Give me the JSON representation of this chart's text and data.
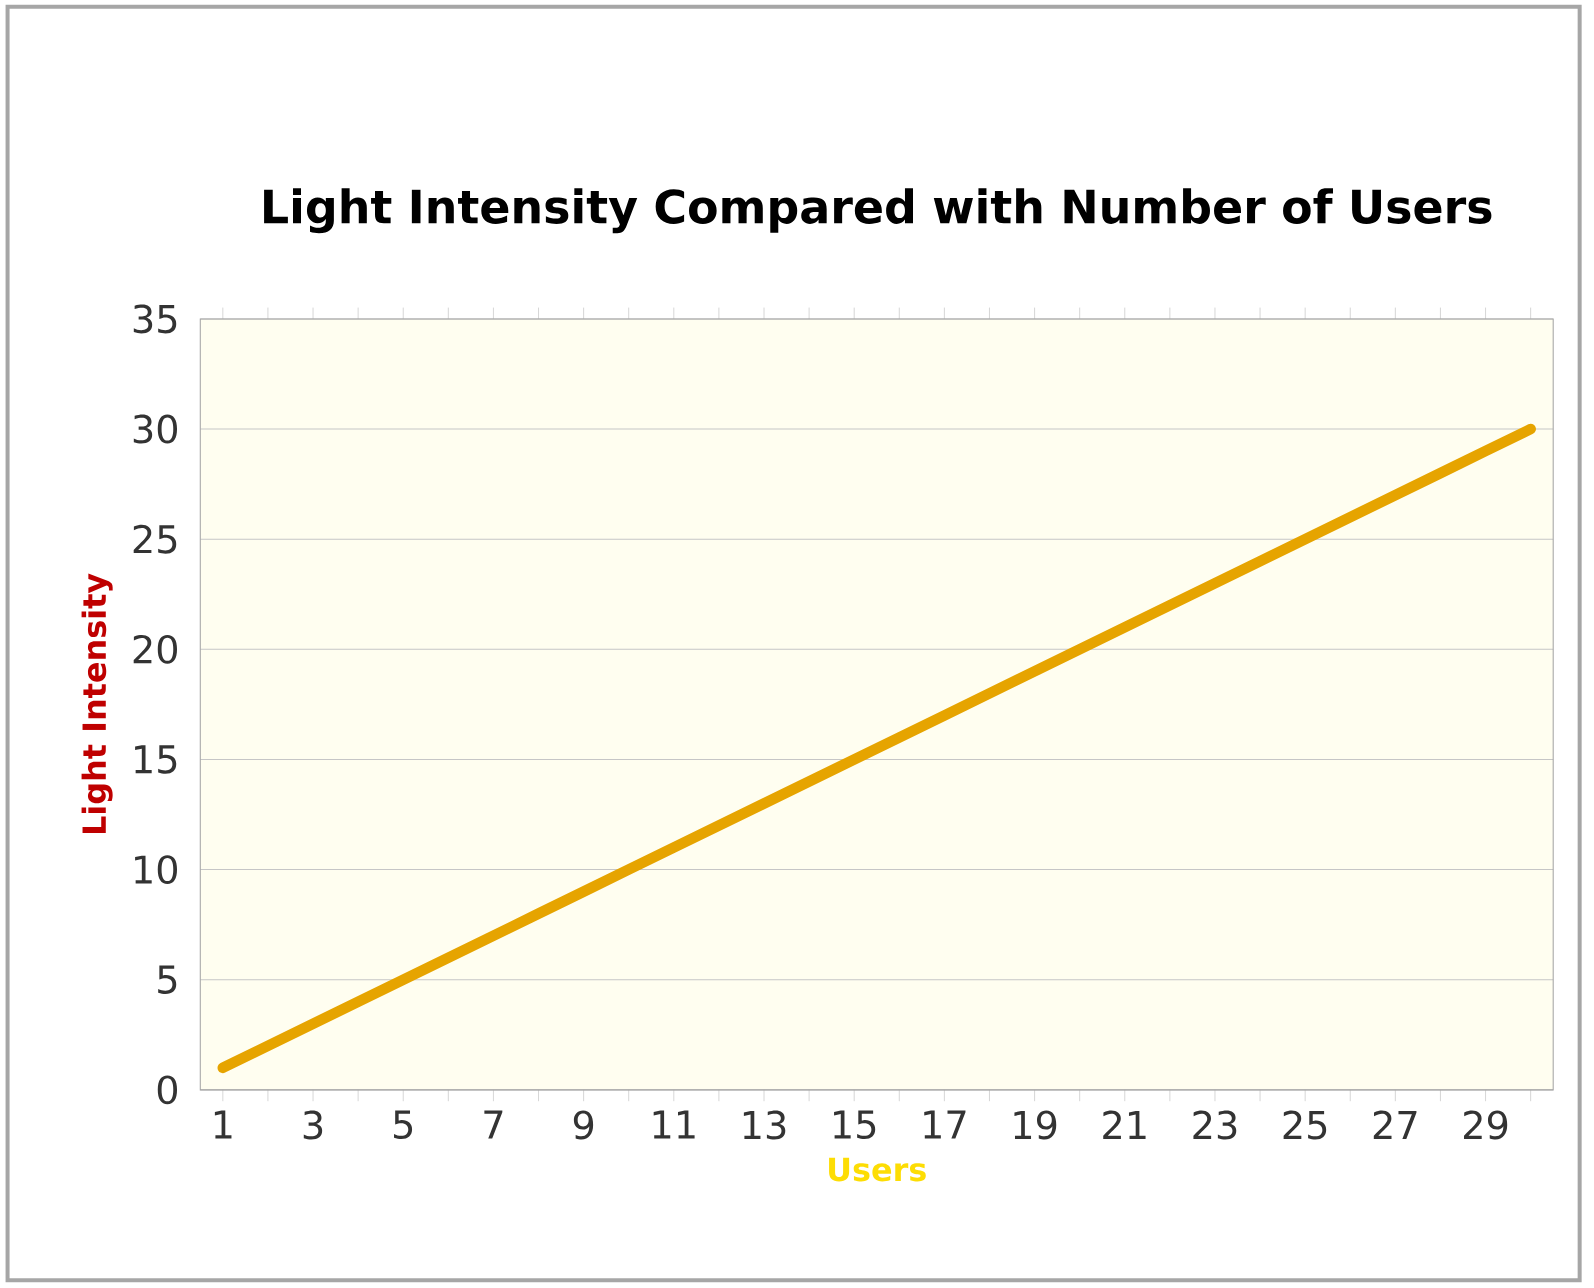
{
  "chart_data": {
    "type": "line",
    "title": "Light Intensity Compared with Number of Users",
    "xlabel": "Users",
    "ylabel": "Light Intensity",
    "categories": [
      "1",
      null,
      "3",
      null,
      "5",
      null,
      "7",
      null,
      "9",
      null,
      "11",
      null,
      "13",
      null,
      "15",
      null,
      "17",
      null,
      "19",
      null,
      "21",
      null,
      "23",
      null,
      "25",
      null,
      "27",
      null,
      "29",
      null
    ],
    "values": [
      1,
      2,
      3,
      4,
      5,
      6,
      7,
      8,
      9,
      10,
      11,
      12,
      13,
      14,
      15,
      16,
      17,
      18,
      19,
      20,
      21,
      22,
      23,
      24,
      25,
      26,
      27,
      28,
      29,
      30
    ],
    "color": "#e6a400",
    "ylim": [
      0,
      35
    ],
    "yticks": [
      0,
      5,
      10,
      15,
      20,
      25,
      30,
      35
    ],
    "grid": "y",
    "marker": "none",
    "line_style": "solid"
  }
}
